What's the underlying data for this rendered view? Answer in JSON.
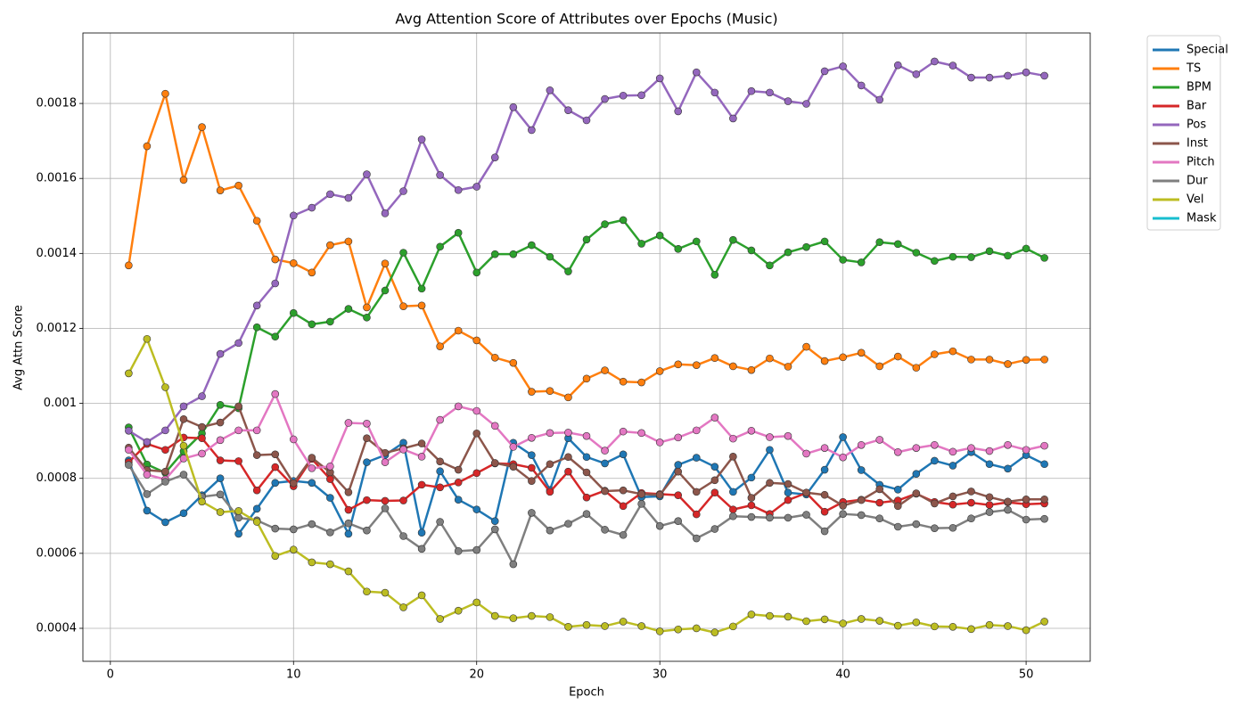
{
  "chart_data": {
    "type": "line",
    "title": "Avg Attention Score of Attributes over Epochs (Music)",
    "x_label": "Epoch",
    "y_label": "Avg Attn Score",
    "x": [
      1,
      2,
      3,
      4,
      5,
      6,
      7,
      8,
      9,
      10,
      11,
      12,
      13,
      14,
      15,
      16,
      17,
      18,
      19,
      20,
      21,
      22,
      23,
      24,
      25,
      26,
      27,
      28,
      29,
      30,
      31,
      32,
      33,
      34,
      35,
      36,
      37,
      38,
      39,
      40,
      41,
      42,
      43,
      44,
      45,
      46,
      47,
      48,
      49,
      50,
      51
    ],
    "xlim": [
      -1.5,
      53.5
    ],
    "ylim": [
      0.000312,
      0.001988
    ],
    "xticks": [
      0,
      10,
      20,
      30,
      40,
      50
    ],
    "yticks": [
      0.0004,
      0.0006,
      0.0008,
      0.001,
      0.0012,
      0.0014,
      0.0016,
      0.0018
    ],
    "grid": true,
    "legend": "outside upper right",
    "series": [
      {
        "name": "Special",
        "color": "#1f77b4",
        "values": [
          0.000848,
          0.000714,
          0.000683,
          0.000707,
          0.000755,
          0.0008,
          0.000652,
          0.000719,
          0.000788,
          0.000793,
          0.000788,
          0.000748,
          0.000652,
          0.000843,
          0.000862,
          0.000895,
          0.000655,
          0.000819,
          0.000743,
          0.000717,
          0.000686,
          0.000895,
          0.000862,
          0.000769,
          0.000907,
          0.000857,
          0.00084,
          0.000864,
          0.00075,
          0.000752,
          0.000836,
          0.000855,
          0.000831,
          0.000764,
          0.000802,
          0.000876,
          0.000762,
          0.000757,
          0.000823,
          0.00091,
          0.000822,
          0.000783,
          0.00077,
          0.000812,
          0.000847,
          0.000834,
          0.00087,
          0.000838,
          0.000826,
          0.000862,
          0.000838
        ]
      },
      {
        "name": "TS",
        "color": "#ff7f0e",
        "values": [
          0.001368,
          0.001686,
          0.001826,
          0.001596,
          0.001737,
          0.001568,
          0.001581,
          0.001487,
          0.001384,
          0.001374,
          0.001349,
          0.001422,
          0.001432,
          0.001256,
          0.001373,
          0.001259,
          0.001261,
          0.001152,
          0.001194,
          0.001168,
          0.001122,
          0.001108,
          0.001031,
          0.001033,
          0.001016,
          0.001066,
          0.001088,
          0.001058,
          0.001056,
          0.001086,
          0.001104,
          0.001102,
          0.001121,
          0.001099,
          0.001089,
          0.00112,
          0.001098,
          0.001151,
          0.001113,
          0.001123,
          0.001135,
          0.001099,
          0.001125,
          0.001095,
          0.001131,
          0.001139,
          0.001117,
          0.001117,
          0.001105,
          0.001116,
          0.001117
        ]
      },
      {
        "name": "BPM",
        "color": "#2ca02c",
        "values": [
          0.000936,
          0.000837,
          0.000815,
          0.000872,
          0.00092,
          0.000996,
          0.000987,
          0.001203,
          0.001178,
          0.001241,
          0.001211,
          0.001218,
          0.001252,
          0.001229,
          0.001301,
          0.001402,
          0.001306,
          0.001418,
          0.001455,
          0.001349,
          0.001398,
          0.001398,
          0.001422,
          0.001391,
          0.001352,
          0.001437,
          0.001478,
          0.001489,
          0.001426,
          0.001448,
          0.001412,
          0.001432,
          0.001343,
          0.001436,
          0.001408,
          0.001368,
          0.001403,
          0.001417,
          0.001432,
          0.001383,
          0.001376,
          0.00143,
          0.001425,
          0.001402,
          0.00138,
          0.001391,
          0.00139,
          0.001406,
          0.001394,
          0.001413,
          0.001388
        ]
      },
      {
        "name": "Bar",
        "color": "#d62728",
        "values": [
          0.000843,
          0.000892,
          0.000876,
          0.000909,
          0.000907,
          0.000848,
          0.000846,
          0.000768,
          0.00083,
          0.000779,
          0.000852,
          0.000798,
          0.000716,
          0.000742,
          0.00074,
          0.000741,
          0.000783,
          0.000776,
          0.000789,
          0.000814,
          0.00084,
          0.000838,
          0.000828,
          0.000764,
          0.000818,
          0.000749,
          0.000767,
          0.000726,
          0.000761,
          0.000758,
          0.000755,
          0.000704,
          0.000762,
          0.000717,
          0.000728,
          0.000705,
          0.000742,
          0.000761,
          0.000711,
          0.000737,
          0.000743,
          0.000735,
          0.000741,
          0.000759,
          0.000737,
          0.00073,
          0.000735,
          0.000729,
          0.000736,
          0.000731,
          0.000733
        ]
      },
      {
        "name": "Pos",
        "color": "#9467bd",
        "values": [
          0.000927,
          0.000897,
          0.000928,
          0.000992,
          0.001019,
          0.001132,
          0.001161,
          0.001261,
          0.00132,
          0.001501,
          0.001522,
          0.001558,
          0.001548,
          0.001611,
          0.001507,
          0.001566,
          0.001704,
          0.001609,
          0.001569,
          0.001578,
          0.001656,
          0.00179,
          0.001729,
          0.001835,
          0.001782,
          0.001755,
          0.001812,
          0.001821,
          0.001822,
          0.001867,
          0.001779,
          0.001883,
          0.001829,
          0.00176,
          0.001833,
          0.001829,
          0.001806,
          0.001799,
          0.001886,
          0.001899,
          0.001848,
          0.00181,
          0.001902,
          0.001878,
          0.001912,
          0.001901,
          0.001869,
          0.001869,
          0.001874,
          0.001883,
          0.001874
        ]
      },
      {
        "name": "Inst",
        "color": "#8c564b",
        "values": [
          0.000882,
          0.000822,
          0.000818,
          0.000958,
          0.000937,
          0.000949,
          0.000992,
          0.000862,
          0.000864,
          0.000787,
          0.000855,
          0.000816,
          0.000763,
          0.000907,
          0.000868,
          0.00088,
          0.000893,
          0.000845,
          0.000823,
          0.00092,
          0.000841,
          0.000831,
          0.000793,
          0.000838,
          0.000857,
          0.000816,
          0.000766,
          0.000768,
          0.000758,
          0.000756,
          0.000818,
          0.000764,
          0.000795,
          0.000858,
          0.000748,
          0.000788,
          0.000785,
          0.000762,
          0.000756,
          0.000727,
          0.000742,
          0.000771,
          0.000726,
          0.00076,
          0.000733,
          0.000752,
          0.000765,
          0.00075,
          0.000738,
          0.000744,
          0.000744
        ]
      },
      {
        "name": "Pitch",
        "color": "#e377c2",
        "values": [
          0.000876,
          0.00081,
          0.000797,
          0.000853,
          0.000866,
          0.000902,
          0.000928,
          0.000928,
          0.001025,
          0.000904,
          0.000827,
          0.000832,
          0.000948,
          0.000946,
          0.000843,
          0.000877,
          0.000858,
          0.000956,
          0.000992,
          0.00098,
          0.00094,
          0.000884,
          0.000908,
          0.000921,
          0.000922,
          0.000913,
          0.000874,
          0.000925,
          0.000921,
          0.000896,
          0.000909,
          0.000928,
          0.000962,
          0.000906,
          0.000927,
          0.00091,
          0.000913,
          0.000866,
          0.000881,
          0.000856,
          0.000889,
          0.000903,
          0.00087,
          0.000881,
          0.000889,
          0.000871,
          0.000881,
          0.000873,
          0.000889,
          0.000876,
          0.000887
        ]
      },
      {
        "name": "Dur",
        "color": "#7f7f7f",
        "values": [
          0.000836,
          0.000758,
          0.000791,
          0.00081,
          0.000751,
          0.000757,
          0.000695,
          0.000688,
          0.000666,
          0.000664,
          0.000678,
          0.000656,
          0.00068,
          0.000661,
          0.00072,
          0.000646,
          0.000612,
          0.000684,
          0.000606,
          0.000609,
          0.000664,
          0.000571,
          0.000708,
          0.000661,
          0.000679,
          0.000705,
          0.000663,
          0.000649,
          0.000732,
          0.000673,
          0.000686,
          0.00064,
          0.000665,
          0.000699,
          0.000697,
          0.000695,
          0.000695,
          0.000703,
          0.000659,
          0.000705,
          0.000702,
          0.000693,
          0.000671,
          0.000678,
          0.000667,
          0.000668,
          0.000693,
          0.00071,
          0.000716,
          0.00069,
          0.000692
        ]
      },
      {
        "name": "Vel",
        "color": "#bcbd22",
        "values": [
          0.00108,
          0.001172,
          0.001043,
          0.000887,
          0.000738,
          0.00071,
          0.000713,
          0.000684,
          0.000593,
          0.00061,
          0.000576,
          0.000571,
          0.000552,
          0.000498,
          0.000495,
          0.000456,
          0.000488,
          0.000425,
          0.000447,
          0.000469,
          0.000433,
          0.000427,
          0.000433,
          0.00043,
          0.000404,
          0.000409,
          0.000406,
          0.000418,
          0.000406,
          0.000392,
          0.000397,
          0.0004,
          0.000389,
          0.000405,
          0.000437,
          0.000433,
          0.000431,
          0.000419,
          0.000424,
          0.000413,
          0.000425,
          0.00042,
          0.000407,
          0.000416,
          0.000405,
          0.000404,
          0.000398,
          0.000409,
          0.000406,
          0.000395,
          0.000418
        ]
      },
      {
        "name": "Mask",
        "color": "#17becf",
        "values": [
          null,
          null,
          null,
          null,
          null,
          null,
          null,
          null,
          null,
          null,
          null,
          null,
          null,
          null,
          null,
          null,
          null,
          null,
          null,
          null,
          null,
          null,
          null,
          null,
          null,
          null,
          null,
          null,
          null,
          null,
          null,
          null,
          null,
          null,
          null,
          null,
          null,
          null,
          null,
          null,
          null,
          null,
          null,
          null,
          null,
          null,
          null,
          null,
          null,
          null,
          null
        ]
      }
    ]
  }
}
